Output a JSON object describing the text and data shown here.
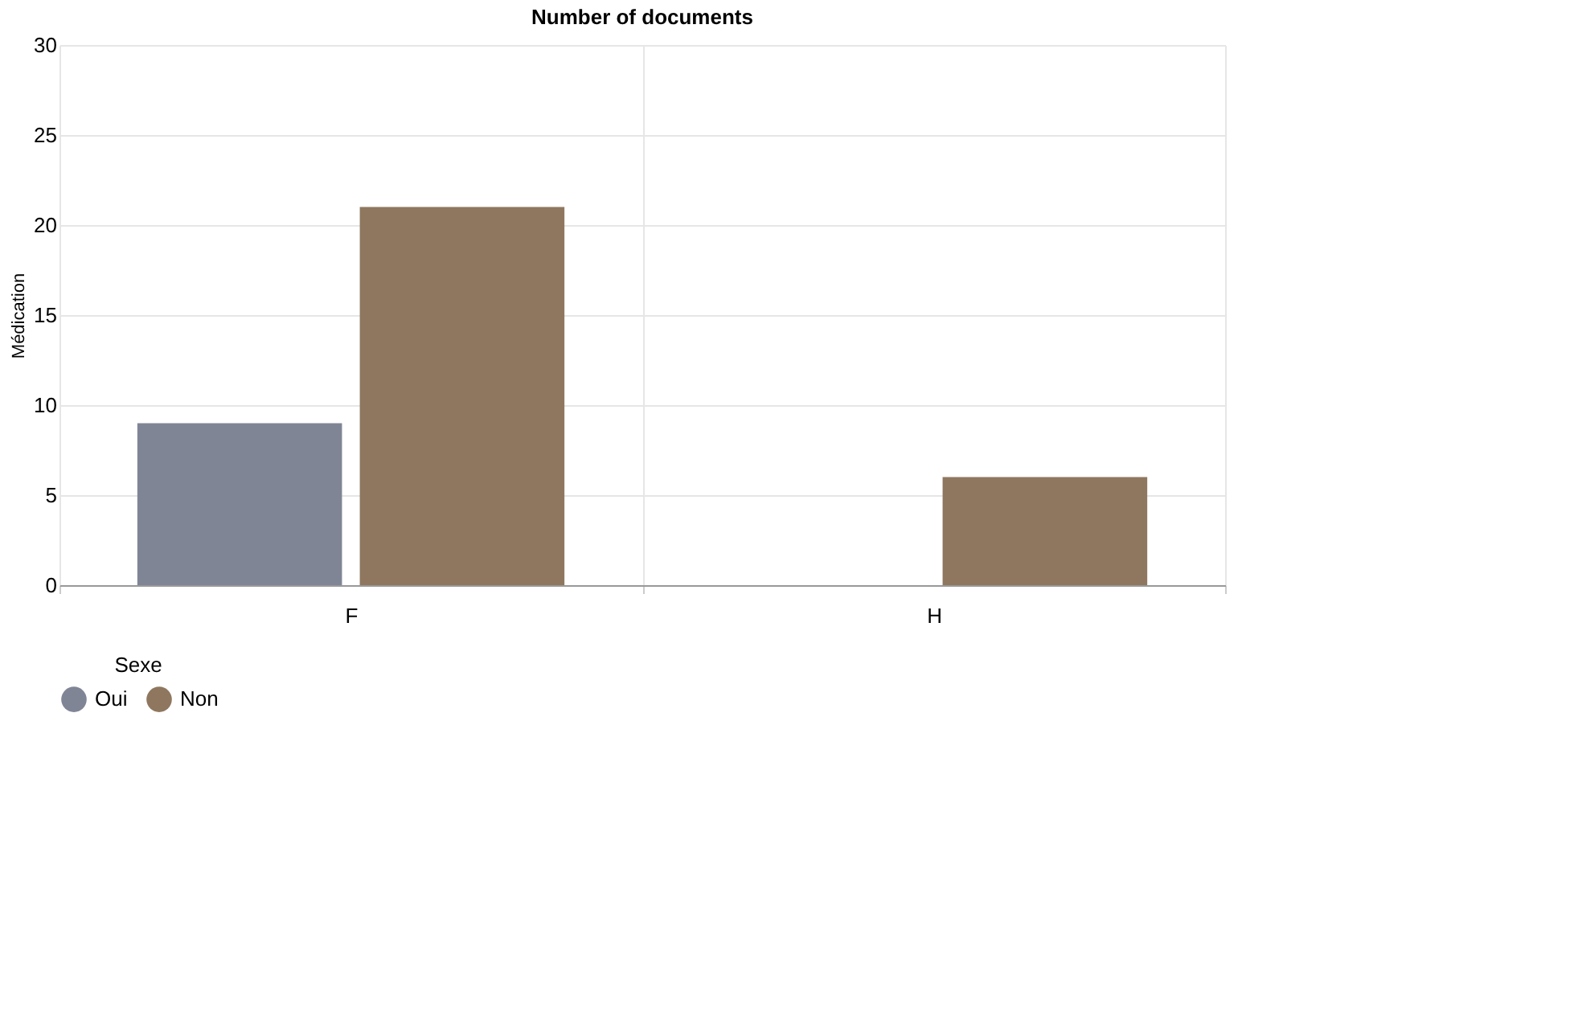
{
  "chart_data": {
    "type": "bar",
    "title": "Number of documents",
    "ylabel": "Médication",
    "legend_title": "Sexe",
    "categories": [
      "F",
      "H"
    ],
    "series": [
      {
        "name": "Oui",
        "color": "#808596",
        "values": [
          9,
          null
        ]
      },
      {
        "name": "Non",
        "color": "#8f775f",
        "values": [
          21,
          6
        ]
      }
    ],
    "ylim": [
      0,
      30
    ],
    "yticks": [
      0,
      5,
      10,
      15,
      20,
      25,
      30
    ],
    "grid": true,
    "legend": "bottom"
  }
}
